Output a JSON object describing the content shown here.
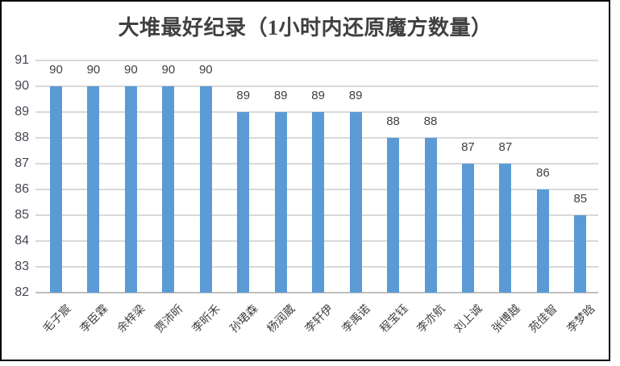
{
  "window": {
    "background_color": "#ffffff",
    "border_color": "#000000"
  },
  "chart_data": {
    "type": "bar",
    "title": "大堆最好纪录（1小时内还原魔方数量）",
    "categories": [
      "毛子宸",
      "李臣霖",
      "余梓梁",
      "贾沛昕",
      "李昕禾",
      "孙珺森",
      "杨润葳",
      "李轩伊",
      "李禹诺",
      "程宝钰",
      "李亦航",
      "刘上诚",
      "张博越",
      "苑佳智",
      "李梦晗"
    ],
    "values": [
      90,
      90,
      90,
      90,
      90,
      89,
      89,
      89,
      89,
      88,
      88,
      87,
      87,
      86,
      85
    ],
    "data_labels_shown": true,
    "xlabel": "",
    "ylabel": "",
    "ylim": [
      82,
      91
    ],
    "yticks": [
      82,
      83,
      84,
      85,
      86,
      87,
      88,
      89,
      90,
      91
    ],
    "grid": "horizontal",
    "legend": "none",
    "bar_color": "#5B9BD5",
    "gridline_color": "#D9D9D9",
    "axis_line_color": "#BFBFBF",
    "text_color": "#404040"
  }
}
